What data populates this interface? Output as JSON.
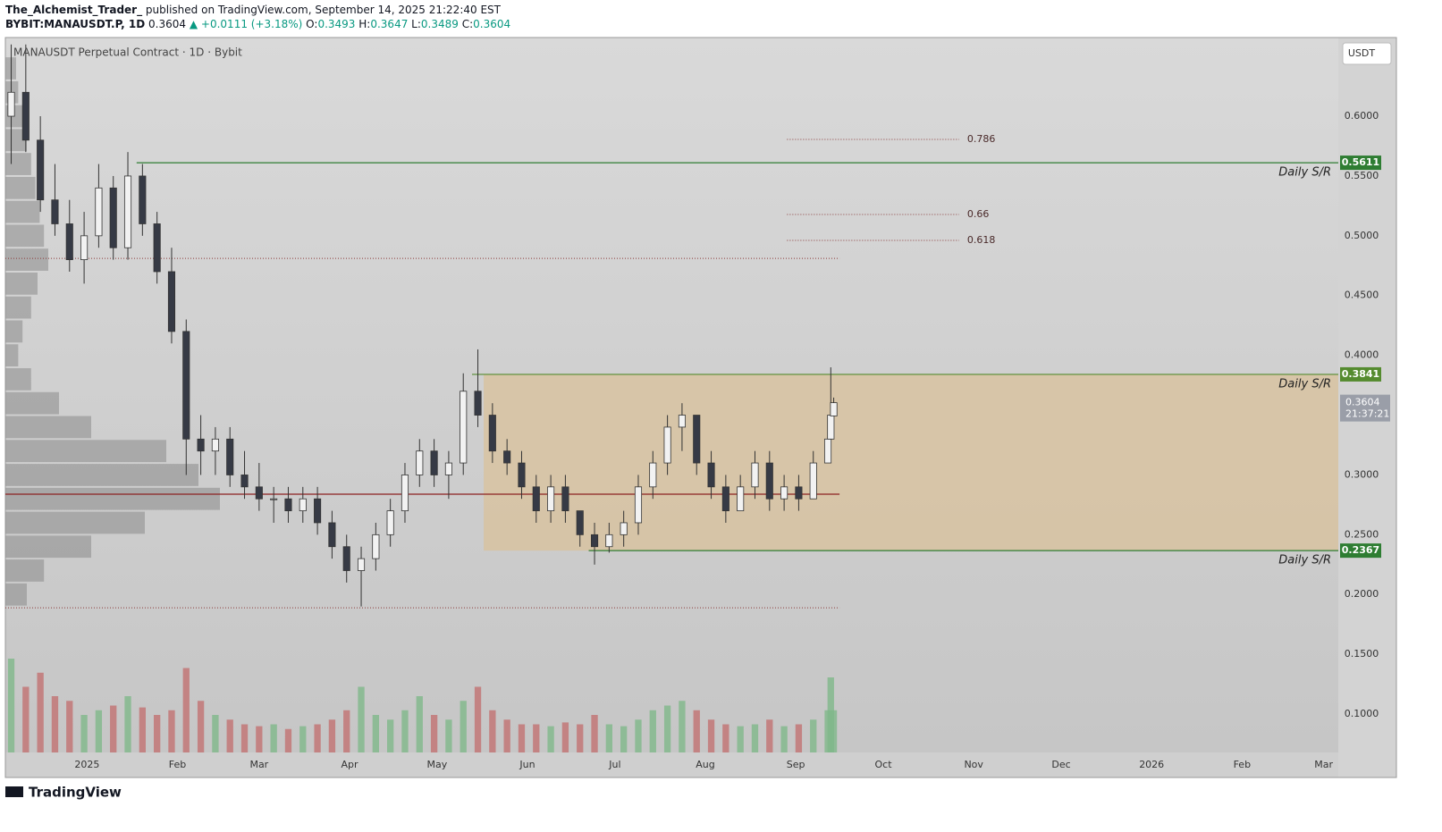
{
  "header": {
    "author": "The_Alchemist_Trader_",
    "published": "published on TradingView.com, September 14, 2025 21:22:40 EST",
    "symbol": "BYBIT:MANAUSDT.P, 1D",
    "price": "0.3604",
    "change": "▲ +0.0111 (+3.18%)",
    "o_label": "O:",
    "o": "0.3493",
    "h_label": "H:",
    "h": "0.3647",
    "l_label": "L:",
    "l": "0.3489",
    "c_label": "C:",
    "c": "0.3604"
  },
  "currency_button": "USDT",
  "brand": "TradingView",
  "chart_data": {
    "type": "candlestick",
    "title": "MANAUSDT Perpetual Contract · 1D · Bybit",
    "xlim": [
      -28,
      429
    ],
    "ylim": [
      0.0679,
      0.6658
    ],
    "xticks": [
      {
        "value": 0,
        "label": "2025"
      },
      {
        "value": 31,
        "label": "Feb"
      },
      {
        "value": 59,
        "label": "Mar"
      },
      {
        "value": 90,
        "label": "Apr"
      },
      {
        "value": 120,
        "label": "May"
      },
      {
        "value": 151,
        "label": "Jun"
      },
      {
        "value": 181,
        "label": "Jul"
      },
      {
        "value": 212,
        "label": "Aug"
      },
      {
        "value": 243,
        "label": "Sep"
      },
      {
        "value": 273,
        "label": "Oct"
      },
      {
        "value": 304,
        "label": "Nov"
      },
      {
        "value": 334,
        "label": "Dec"
      },
      {
        "value": 365,
        "label": "2026"
      },
      {
        "value": 396,
        "label": "Feb"
      },
      {
        "value": 424,
        "label": "Mar"
      }
    ],
    "yticks": [
      {
        "value": 0.6,
        "label": "0.6000"
      },
      {
        "value": 0.55,
        "label": "0.5500"
      },
      {
        "value": 0.5,
        "label": "0.5000"
      },
      {
        "value": 0.45,
        "label": "0.4500"
      },
      {
        "value": 0.4,
        "label": "0.4000"
      },
      {
        "value": 0.3,
        "label": "0.3000"
      },
      {
        "value": 0.25,
        "label": "0.2500"
      },
      {
        "value": 0.2,
        "label": "0.2000"
      },
      {
        "value": 0.15,
        "label": "0.1500"
      },
      {
        "value": 0.1,
        "label": "0.1000"
      }
    ],
    "x": [
      -26,
      -21,
      -16,
      -11,
      -6,
      -1,
      4,
      9,
      14,
      19,
      24,
      29,
      34,
      39,
      44,
      49,
      54,
      59,
      64,
      69,
      74,
      79,
      84,
      89,
      94,
      99,
      104,
      109,
      114,
      119,
      124,
      129,
      134,
      139,
      144,
      149,
      154,
      159,
      164,
      169,
      174,
      179,
      184,
      189,
      194,
      199,
      204,
      209,
      214,
      219,
      224,
      229,
      234,
      239,
      244,
      249,
      254,
      255,
      256
    ],
    "open": [
      0.6,
      0.62,
      0.58,
      0.53,
      0.51,
      0.48,
      0.5,
      0.54,
      0.49,
      0.55,
      0.51,
      0.47,
      0.42,
      0.33,
      0.32,
      0.33,
      0.3,
      0.29,
      0.28,
      0.28,
      0.27,
      0.28,
      0.26,
      0.24,
      0.22,
      0.23,
      0.25,
      0.27,
      0.3,
      0.32,
      0.3,
      0.31,
      0.37,
      0.35,
      0.32,
      0.31,
      0.29,
      0.27,
      0.29,
      0.27,
      0.25,
      0.24,
      0.25,
      0.26,
      0.29,
      0.31,
      0.34,
      0.35,
      0.31,
      0.29,
      0.27,
      0.29,
      0.31,
      0.28,
      0.29,
      0.28,
      0.31,
      0.33,
      0.3493
    ],
    "high": [
      0.66,
      0.66,
      0.6,
      0.56,
      0.53,
      0.52,
      0.56,
      0.55,
      0.57,
      0.56,
      0.52,
      0.49,
      0.43,
      0.35,
      0.34,
      0.34,
      0.32,
      0.31,
      0.29,
      0.29,
      0.29,
      0.29,
      0.27,
      0.25,
      0.24,
      0.26,
      0.28,
      0.31,
      0.33,
      0.33,
      0.32,
      0.385,
      0.405,
      0.36,
      0.33,
      0.32,
      0.3,
      0.3,
      0.3,
      0.27,
      0.26,
      0.26,
      0.27,
      0.3,
      0.32,
      0.35,
      0.36,
      0.35,
      0.32,
      0.3,
      0.3,
      0.32,
      0.32,
      0.3,
      0.3,
      0.32,
      0.34,
      0.39,
      0.3647
    ],
    "low": [
      0.56,
      0.57,
      0.52,
      0.5,
      0.47,
      0.46,
      0.49,
      0.48,
      0.48,
      0.5,
      0.46,
      0.41,
      0.3,
      0.3,
      0.3,
      0.29,
      0.28,
      0.27,
      0.26,
      0.26,
      0.26,
      0.25,
      0.23,
      0.21,
      0.19,
      0.22,
      0.24,
      0.26,
      0.29,
      0.29,
      0.28,
      0.3,
      0.34,
      0.31,
      0.3,
      0.28,
      0.26,
      0.26,
      0.26,
      0.24,
      0.225,
      0.235,
      0.24,
      0.25,
      0.28,
      0.3,
      0.32,
      0.3,
      0.28,
      0.26,
      0.27,
      0.28,
      0.27,
      0.27,
      0.27,
      0.28,
      0.31,
      0.33,
      0.3489
    ],
    "close": [
      0.62,
      0.58,
      0.53,
      0.51,
      0.48,
      0.5,
      0.54,
      0.49,
      0.55,
      0.51,
      0.47,
      0.42,
      0.33,
      0.32,
      0.33,
      0.3,
      0.29,
      0.28,
      0.28,
      0.27,
      0.28,
      0.26,
      0.24,
      0.22,
      0.23,
      0.25,
      0.27,
      0.3,
      0.32,
      0.3,
      0.31,
      0.37,
      0.35,
      0.32,
      0.31,
      0.29,
      0.27,
      0.29,
      0.27,
      0.25,
      0.24,
      0.25,
      0.26,
      0.29,
      0.31,
      0.34,
      0.35,
      0.31,
      0.29,
      0.27,
      0.29,
      0.31,
      0.28,
      0.29,
      0.28,
      0.31,
      0.33,
      0.35,
      0.3604
    ],
    "volume": [
      100,
      70,
      85,
      60,
      55,
      40,
      45,
      50,
      60,
      48,
      40,
      45,
      90,
      55,
      40,
      35,
      30,
      28,
      30,
      25,
      28,
      30,
      35,
      45,
      70,
      40,
      35,
      45,
      60,
      40,
      35,
      55,
      70,
      45,
      35,
      30,
      30,
      28,
      32,
      30,
      40,
      30,
      28,
      35,
      45,
      50,
      55,
      45,
      35,
      30,
      28,
      30,
      35,
      28,
      30,
      35,
      45,
      80,
      45
    ],
    "up_color": "#f2f2f2",
    "down_color": "#363a45",
    "volume_up_color": "#7fb88a",
    "volume_down_color": "#c27272",
    "volume_profile": {
      "prices": [
        0.2,
        0.22,
        0.24,
        0.26,
        0.28,
        0.3,
        0.32,
        0.34,
        0.36,
        0.38,
        0.4,
        0.42,
        0.44,
        0.46,
        0.48,
        0.5,
        0.52,
        0.54,
        0.56,
        0.58,
        0.6,
        0.62,
        0.64
      ],
      "values": [
        10,
        18,
        40,
        65,
        100,
        90,
        75,
        40,
        25,
        12,
        6,
        8,
        12,
        15,
        20,
        18,
        16,
        14,
        12,
        10,
        8,
        6,
        5
      ]
    },
    "levels": [
      {
        "value": 0.5611,
        "start": 17,
        "text": "Daily S/R",
        "color": "#2e7d32"
      },
      {
        "value": 0.3841,
        "start": 132,
        "text": "Daily S/R",
        "color": "#558b2f"
      },
      {
        "value": 0.2367,
        "start": 172,
        "text": "Daily S/R",
        "color": "#2e7d32"
      }
    ],
    "dotted_levels": [
      0.4811,
      0.1889
    ],
    "poc": 0.2839,
    "lines_end": 258,
    "range_box": {
      "start": 136,
      "low": 0.2367,
      "high": 0.3841,
      "color": "#d9c29b"
    },
    "fib_levels": [
      {
        "ratio": 0.786,
        "price": 0.5806
      },
      {
        "ratio": 0.66,
        "price": 0.5178
      },
      {
        "ratio": 0.618,
        "price": 0.4961
      }
    ],
    "fib_start": 240,
    "fib_end": 299,
    "last_price": 0.3604,
    "countdown": "21:37:21"
  }
}
